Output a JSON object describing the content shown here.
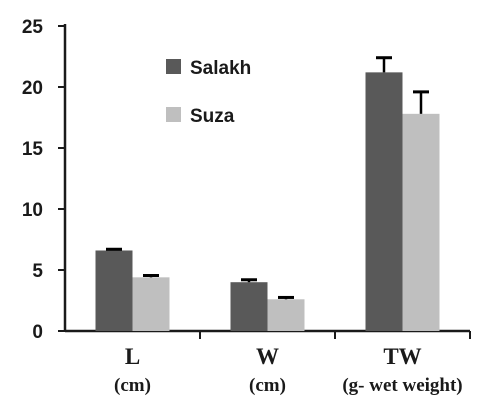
{
  "chart_data": {
    "type": "bar",
    "categories": [
      "L",
      "W",
      "TW"
    ],
    "category_units": [
      "(cm)",
      "(cm)",
      "(g- wet weight)"
    ],
    "series": [
      {
        "name": "Salakh",
        "values": [
          6.6,
          4.0,
          21.2
        ],
        "errors": [
          0.1,
          0.2,
          1.2
        ]
      },
      {
        "name": "Suza",
        "values": [
          4.4,
          2.6,
          17.8
        ],
        "errors": [
          0.15,
          0.15,
          1.8
        ]
      }
    ],
    "ylim": [
      0,
      25
    ],
    "yticks": [
      0,
      5,
      10,
      15,
      20,
      25
    ],
    "legend_position": "top-left-center",
    "colors": {
      "Salakh": "#595959",
      "Suza": "#bfbfbf",
      "axis": "#1a1a1a",
      "error": "#000000"
    }
  }
}
